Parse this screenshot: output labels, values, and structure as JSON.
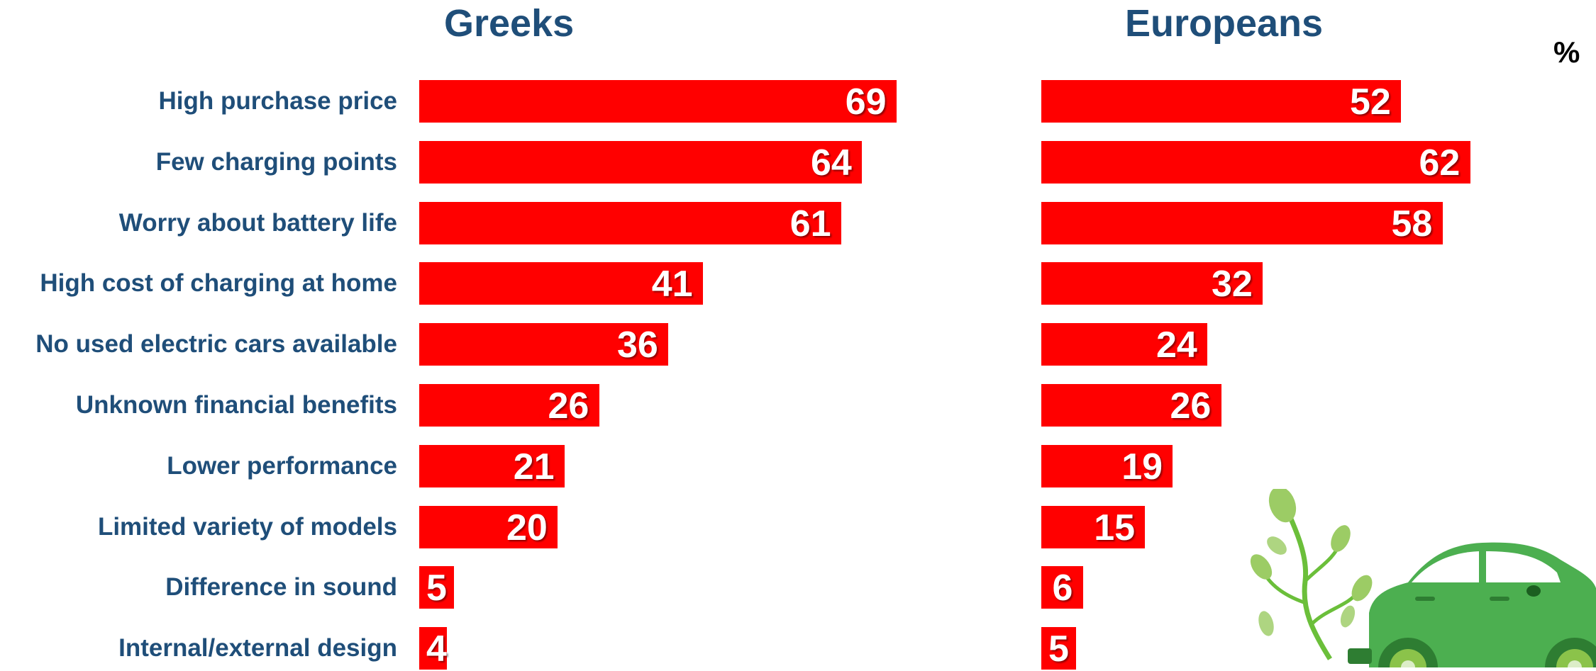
{
  "panels": {
    "left_title": "Greeks",
    "right_title": "Europeans",
    "unit": "%"
  },
  "colors": {
    "bar": "#ff0000",
    "title": "#1f4e79",
    "value_label": "#ffffff"
  },
  "chart_data": [
    {
      "type": "bar",
      "orientation": "horizontal",
      "title": "Greeks",
      "categories": [
        "High purchase price",
        "Few charging points",
        "Worry about battery life",
        "High cost of charging at home",
        "No used electric cars available",
        "Unknown financial benefits",
        "Lower performance",
        "Limited variety of models",
        "Difference in sound",
        "Internal/external design"
      ],
      "values": [
        69,
        64,
        61,
        41,
        36,
        26,
        21,
        20,
        5,
        4
      ],
      "xlim": [
        0,
        100
      ],
      "grid": false
    },
    {
      "type": "bar",
      "orientation": "horizontal",
      "title": "Europeans",
      "categories": [
        "High purchase price",
        "Few charging points",
        "Worry about battery life",
        "High cost of charging at home",
        "No used electric cars available",
        "Unknown financial benefits",
        "Lower performance",
        "Limited variety of models",
        "Difference in sound",
        "Internal/external design"
      ],
      "values": [
        52,
        62,
        58,
        32,
        24,
        26,
        19,
        15,
        6,
        5
      ],
      "xlim": [
        0,
        100
      ],
      "grid": false
    }
  ],
  "decoration": {
    "illustration": "green-electric-car-with-plant-icon"
  }
}
